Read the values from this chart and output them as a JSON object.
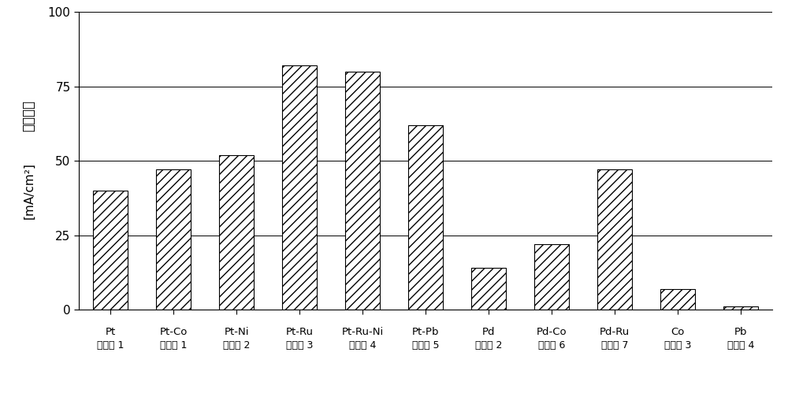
{
  "categories_line1": [
    "Pt",
    "Pt-Co",
    "Pt-Ni",
    "Pt-Ru",
    "Pt-Ru-Ni",
    "Pt-Pb",
    "Pd",
    "Pd-Co",
    "Pd-Ru",
    "Co",
    "Pb"
  ],
  "categories_line2": [
    "比较例 1",
    "实施例 1",
    "实施例 2",
    "实施例 3",
    "实施例 4",
    "实施例 5",
    "比较例 2",
    "实施例 6",
    "实施例 7",
    "比较例 3",
    "比较例 4"
  ],
  "values": [
    40,
    47,
    52,
    82,
    80,
    62,
    14,
    22,
    47,
    7,
    1
  ],
  "ylabel_top": "電流密度",
  "ylabel_bottom": "[mA/cm²]",
  "ylim": [
    0,
    100
  ],
  "yticks": [
    0,
    25,
    50,
    75,
    100
  ],
  "bar_facecolor": "#ffffff",
  "bar_edgecolor": "#000000",
  "hatch": "///",
  "figsize": [
    10.0,
    5.04
  ],
  "dpi": 100,
  "background_color": "#ffffff",
  "grid_linewidth": 0.7,
  "bar_width": 0.55
}
